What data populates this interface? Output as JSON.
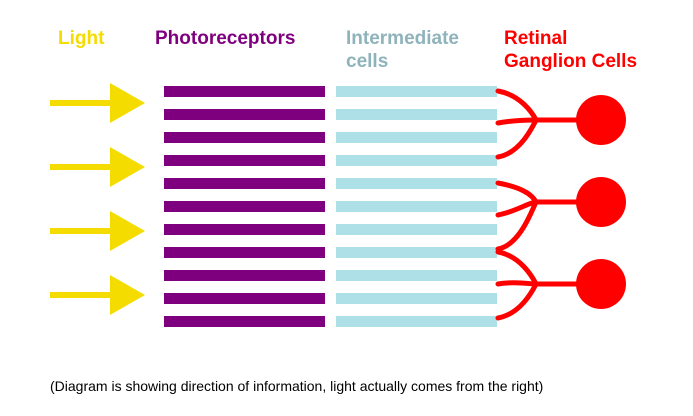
{
  "labels": {
    "light": "Light",
    "photoreceptors": "Photoreceptors",
    "intermediate_line1": "Intermediate",
    "intermediate_line2": "cells",
    "ganglion_line1": "Retinal",
    "ganglion_line2": "Ganglion Cells"
  },
  "caption": "(Diagram is showing direction of information, light actually comes from the right)",
  "colors": {
    "light": "#f5dc00",
    "photoreceptors": "#7f007f",
    "intermediate": "#aee0e8",
    "intermediate_label": "#8fb3bb",
    "ganglion": "#ff0000"
  },
  "diagram": {
    "arrow_count": 4,
    "photoreceptor_bar_count": 11,
    "intermediate_bar_count": 11,
    "ganglion_cell_count": 3,
    "bars_per_ganglion_cell": 3
  }
}
